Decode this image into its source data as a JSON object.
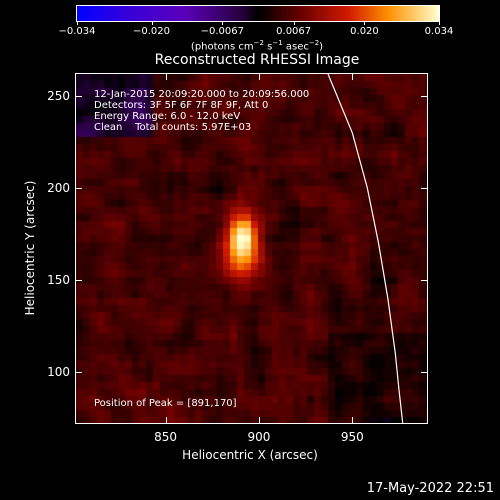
{
  "colorbar": {
    "tick_labels": [
      "−0.034",
      "−0.020",
      "−0.0067",
      "0.0067",
      "0.020",
      "0.034"
    ],
    "tick_values": [
      -0.034,
      -0.02,
      -0.0067,
      0.0067,
      0.02,
      0.034
    ],
    "range": [
      -0.034,
      0.034
    ],
    "unit_text": "(photons cm",
    "unit_sup1": "−2",
    "unit_mid": " s",
    "unit_sup2": "−1",
    "unit_mid2": " asec",
    "unit_sup3": "−2",
    "unit_end": ")"
  },
  "title": "Reconstructed RHESSI Image",
  "info": {
    "line1": "12-Jan-2015 20:09:20.000 to 20:09:56.000",
    "line2": "Detectors: 3F 5F 6F 7F 8F 9F, Att 0",
    "line3": "Energy Range: 6.0 - 12.0 keV",
    "line4": "Clean    Total counts: 5.97E+03",
    "peak": "Position of Peak = [891,170]"
  },
  "xlabel": "Heliocentric X (arcsec)",
  "ylabel": "Heliocentric Y (arcsec)",
  "datestamp": "17-May-2022 22:51",
  "chart_data": {
    "type": "heatmap",
    "title": "Reconstructed RHESSI Image",
    "xlabel": "Heliocentric X (arcsec)",
    "ylabel": "Heliocentric Y (arcsec)",
    "x_ticks": [
      850,
      900,
      950
    ],
    "x_tick_labels": [
      "850",
      "900",
      "950"
    ],
    "y_ticks": [
      100,
      150,
      200,
      250
    ],
    "y_tick_labels": [
      "100",
      "150",
      "200",
      "250"
    ],
    "xlim": [
      802,
      990
    ],
    "ylim": [
      72,
      262
    ],
    "peak": [
      891,
      170
    ],
    "colorscale_range": [
      -0.034,
      0.034
    ],
    "limb_curve": [
      [
        937,
        262
      ],
      [
        950,
        230
      ],
      [
        958,
        200
      ],
      [
        964,
        170
      ],
      [
        969,
        140
      ],
      [
        973,
        110
      ],
      [
        975,
        90
      ],
      [
        977,
        72
      ]
    ]
  }
}
